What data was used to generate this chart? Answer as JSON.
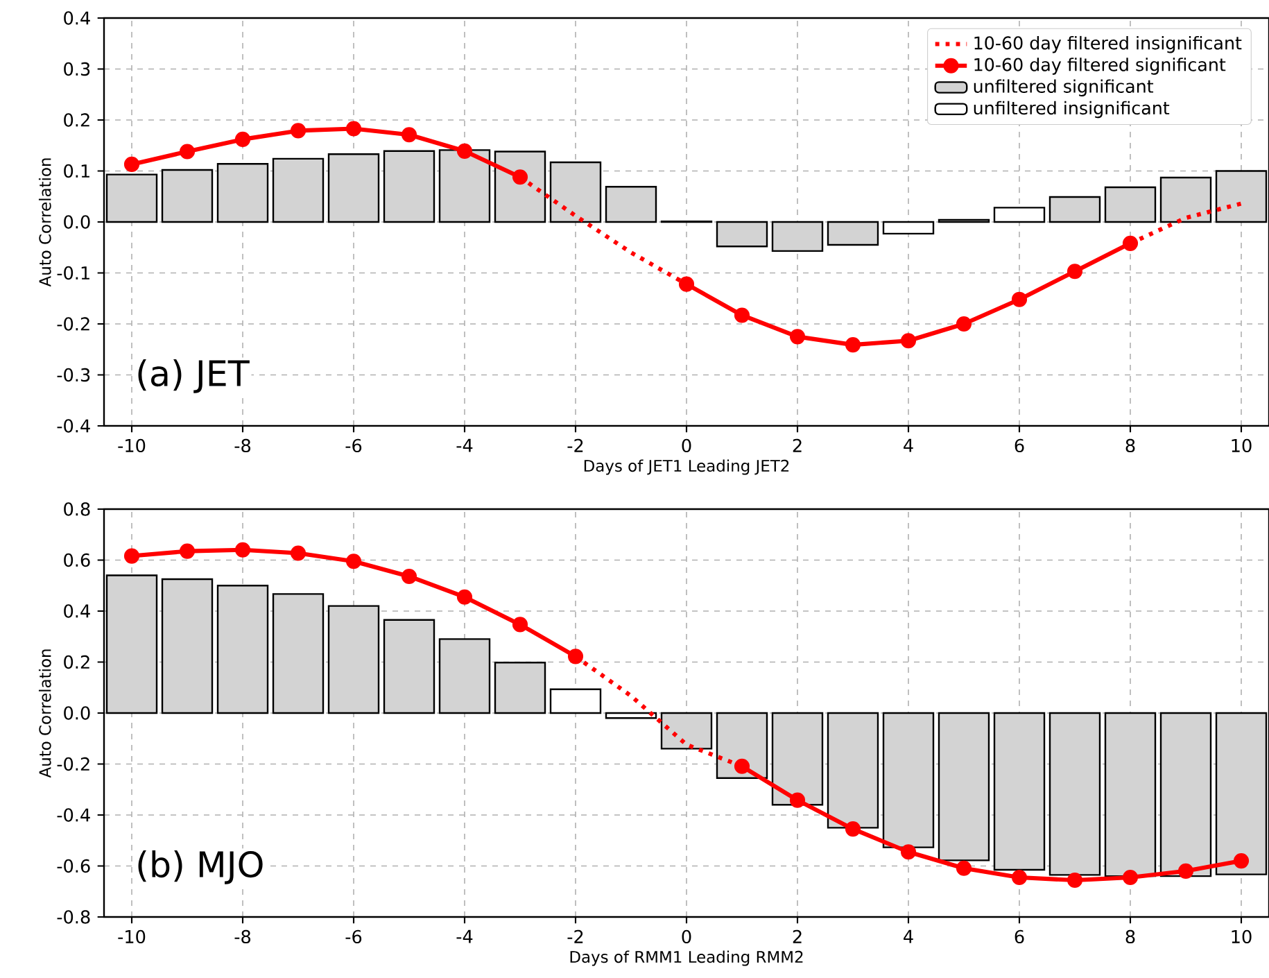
{
  "chart_data": [
    {
      "type": "bar",
      "xlabel": "Days of JET1 Leading JET2",
      "ylabel": "Auto Correlation",
      "annotations": [
        "(a) JET"
      ],
      "x": [
        -10,
        -9,
        -8,
        -7,
        -6,
        -5,
        -4,
        -3,
        -2,
        -1,
        0,
        1,
        2,
        3,
        4,
        5,
        6,
        7,
        8,
        9,
        10
      ],
      "xlim": [
        -10.5,
        10.5
      ],
      "xticks": [
        -10,
        -8,
        -6,
        -4,
        -2,
        0,
        2,
        4,
        6,
        8,
        10
      ],
      "ylim": [
        -0.4,
        0.4
      ],
      "yticks": [
        -0.4,
        -0.3,
        -0.2,
        -0.1,
        {
          "value": 0,
          "label": "0.0"
        },
        0.1,
        0.2,
        0.3,
        0.4
      ],
      "grid": true,
      "legend": "top right",
      "series": [
        {
          "name": "10-60 day filtered insignificant",
          "type": "line",
          "color": "#ff0000",
          "line_style": "dotted",
          "values": [
            null,
            null,
            null,
            null,
            null,
            null,
            null,
            0.088,
            0.012,
            -0.06,
            -0.122,
            null,
            null,
            null,
            null,
            null,
            null,
            null,
            -0.042,
            0.008,
            0.036
          ]
        },
        {
          "name": "10-60 day filtered significant",
          "type": "line",
          "color": "#ff0000",
          "line_style": "solid",
          "marker": "circle",
          "values": [
            0.113,
            0.138,
            0.162,
            0.179,
            0.183,
            0.171,
            0.139,
            0.088,
            null,
            null,
            -0.122,
            -0.183,
            -0.225,
            -0.241,
            -0.233,
            -0.2,
            -0.152,
            -0.097,
            -0.042,
            null,
            null
          ]
        },
        {
          "name": "unfiltered significant",
          "color": "#d3d3d3",
          "values": [
            0.093,
            0.102,
            0.114,
            0.124,
            0.133,
            0.139,
            0.141,
            0.138,
            0.117,
            0.069,
            null,
            -0.048,
            -0.057,
            -0.045,
            null,
            null,
            null,
            0.049,
            0.068,
            0.087,
            0.1
          ]
        },
        {
          "name": "unfiltered insignificant",
          "color": "#ffffff",
          "values": [
            null,
            null,
            null,
            null,
            null,
            null,
            null,
            null,
            null,
            null,
            0.001,
            null,
            null,
            null,
            -0.023,
            0.004,
            0.028,
            null,
            null,
            null,
            null
          ]
        }
      ]
    },
    {
      "type": "bar",
      "xlabel": "Days of RMM1 Leading RMM2",
      "ylabel": "Auto Correlation",
      "annotations": [
        "(b) MJO"
      ],
      "x": [
        -10,
        -9,
        -8,
        -7,
        -6,
        -5,
        -4,
        -3,
        -2,
        -1,
        0,
        1,
        2,
        3,
        4,
        5,
        6,
        7,
        8,
        9,
        10
      ],
      "xlim": [
        -10.5,
        10.5
      ],
      "xticks": [
        -10,
        -8,
        -6,
        -4,
        -2,
        0,
        2,
        4,
        6,
        8,
        10
      ],
      "ylim": [
        -0.8,
        0.8
      ],
      "yticks": [
        -0.8,
        -0.6,
        -0.4,
        -0.2,
        {
          "value": 0,
          "label": "0.0"
        },
        0.2,
        0.4,
        0.6,
        0.8
      ],
      "grid": true,
      "series": [
        {
          "type": "line",
          "color": "#ff0000",
          "line_style": "dotted",
          "values": [
            null,
            null,
            null,
            null,
            null,
            null,
            null,
            null,
            0.222,
            0.067,
            -0.124,
            -0.209,
            null,
            null,
            null,
            null,
            null,
            null,
            null,
            null,
            null
          ]
        },
        {
          "type": "line",
          "color": "#ff0000",
          "line_style": "solid",
          "marker": "circle",
          "values": [
            0.616,
            0.635,
            0.64,
            0.627,
            0.595,
            0.536,
            0.455,
            0.347,
            0.222,
            null,
            null,
            -0.209,
            -0.342,
            -0.455,
            -0.545,
            -0.609,
            -0.645,
            -0.656,
            -0.645,
            -0.62,
            -0.58
          ]
        },
        {
          "color": "#d3d3d3",
          "values": [
            0.54,
            0.525,
            0.5,
            0.467,
            0.42,
            0.365,
            0.29,
            0.198,
            null,
            null,
            -0.14,
            -0.255,
            -0.36,
            -0.45,
            -0.527,
            -0.578,
            -0.615,
            -0.635,
            -0.64,
            -0.64,
            -0.633
          ]
        },
        {
          "color": "#ffffff",
          "values": [
            null,
            null,
            null,
            null,
            null,
            null,
            null,
            null,
            0.093,
            -0.02,
            null,
            null,
            null,
            null,
            null,
            null,
            null,
            null,
            null,
            null,
            null
          ]
        }
      ]
    }
  ]
}
